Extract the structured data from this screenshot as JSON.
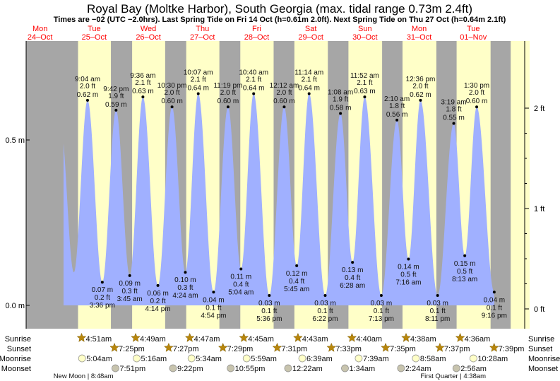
{
  "chart_data": {
    "type": "area",
    "title": "Royal Bay (Moltke Harbor), South Georgia (max. tidal range 0.73m 2.4ft)",
    "subtitle": "Times are −02 (UTC −2.0hrs). Last Spring Tide on Fri 14 Oct (h=0.61m 2.0ft). Next Spring Tide on Thu 27 Oct (h=0.64m 2.1ft)",
    "days": [
      {
        "dow": "Mon",
        "date": "24–Oct"
      },
      {
        "dow": "Tue",
        "date": "25–Oct"
      },
      {
        "dow": "Wed",
        "date": "26–Oct"
      },
      {
        "dow": "Thu",
        "date": "27–Oct"
      },
      {
        "dow": "Fri",
        "date": "28–Oct"
      },
      {
        "dow": "Sat",
        "date": "29–Oct"
      },
      {
        "dow": "Sun",
        "date": "30–Oct"
      },
      {
        "dow": "Mon",
        "date": "31–Oct"
      },
      {
        "dow": "Tue",
        "date": "01–Nov"
      }
    ],
    "y_left_ticks": [
      {
        "value": 0.0,
        "label": "0.0 m"
      },
      {
        "value": 0.5,
        "label": "0.5 m"
      }
    ],
    "y_right_ticks": [
      {
        "value": 0,
        "label": "0 ft"
      },
      {
        "value": 1,
        "label": "1 ft"
      },
      {
        "value": 2,
        "label": "2 ft"
      }
    ],
    "ylim_m": [
      0.0,
      0.7
    ],
    "tides": [
      {
        "day": 1,
        "time": "9:04 am",
        "m": 0.62,
        "ft": "2.0 ft",
        "type": "high"
      },
      {
        "day": 1,
        "time": "3:36 pm",
        "m": 0.07,
        "ft": "0.2 ft",
        "type": "low"
      },
      {
        "day": 1,
        "time": "9:42 pm",
        "m": 0.59,
        "ft": "1.9 ft",
        "type": "high"
      },
      {
        "day": 2,
        "time": "3:45 am",
        "m": 0.09,
        "ft": "0.3 ft",
        "type": "low"
      },
      {
        "day": 2,
        "time": "9:36 am",
        "m": 0.63,
        "ft": "2.1 ft",
        "type": "high"
      },
      {
        "day": 2,
        "time": "4:14 pm",
        "m": 0.06,
        "ft": "0.2 ft",
        "type": "low"
      },
      {
        "day": 2,
        "time": "10:30 pm",
        "m": 0.6,
        "ft": "2.0 ft",
        "type": "high"
      },
      {
        "day": 3,
        "time": "4:24 am",
        "m": 0.1,
        "ft": "0.3 ft",
        "type": "low"
      },
      {
        "day": 3,
        "time": "10:07 am",
        "m": 0.64,
        "ft": "2.1 ft",
        "type": "high"
      },
      {
        "day": 3,
        "time": "4:54 pm",
        "m": 0.04,
        "ft": "0.1 ft",
        "type": "low"
      },
      {
        "day": 3,
        "time": "11:19 pm",
        "m": 0.6,
        "ft": "2.0 ft",
        "type": "high"
      },
      {
        "day": 4,
        "time": "5:04 am",
        "m": 0.11,
        "ft": "0.4 ft",
        "type": "low"
      },
      {
        "day": 4,
        "time": "10:40 am",
        "m": 0.64,
        "ft": "2.1 ft",
        "type": "high"
      },
      {
        "day": 4,
        "time": "5:36 pm",
        "m": 0.03,
        "ft": "0.1 ft",
        "type": "low"
      },
      {
        "day": 5,
        "time": "12:12 am",
        "m": 0.6,
        "ft": "2.0 ft",
        "type": "high"
      },
      {
        "day": 5,
        "time": "5:45 am",
        "m": 0.12,
        "ft": "0.4 ft",
        "type": "low"
      },
      {
        "day": 5,
        "time": "11:14 am",
        "m": 0.64,
        "ft": "2.1 ft",
        "type": "high"
      },
      {
        "day": 5,
        "time": "6:22 pm",
        "m": 0.03,
        "ft": "0.1 ft",
        "type": "low"
      },
      {
        "day": 6,
        "time": "1:08 am",
        "m": 0.58,
        "ft": "1.9 ft",
        "type": "high"
      },
      {
        "day": 6,
        "time": "6:28 am",
        "m": 0.13,
        "ft": "0.4 ft",
        "type": "low"
      },
      {
        "day": 6,
        "time": "11:52 am",
        "m": 0.63,
        "ft": "2.1 ft",
        "type": "high"
      },
      {
        "day": 6,
        "time": "7:13 pm",
        "m": 0.03,
        "ft": "0.1 ft",
        "type": "low"
      },
      {
        "day": 7,
        "time": "2:10 am",
        "m": 0.56,
        "ft": "1.8 ft",
        "type": "high"
      },
      {
        "day": 7,
        "time": "7:16 am",
        "m": 0.14,
        "ft": "0.5 ft",
        "type": "low"
      },
      {
        "day": 7,
        "time": "12:36 pm",
        "m": 0.62,
        "ft": "2.0 ft",
        "type": "high"
      },
      {
        "day": 7,
        "time": "8:11 pm",
        "m": 0.03,
        "ft": "0.1 ft",
        "type": "low"
      },
      {
        "day": 8,
        "time": "3:19 am",
        "m": 0.55,
        "ft": "1.8 ft",
        "type": "high"
      },
      {
        "day": 8,
        "time": "8:13 am",
        "m": 0.15,
        "ft": "0.5 ft",
        "type": "low"
      },
      {
        "day": 8,
        "time": "1:30 pm",
        "m": 0.6,
        "ft": "2.0 ft",
        "type": "high"
      },
      {
        "day": 8,
        "time": "9:16 pm",
        "m": 0.04,
        "ft": "0.1 ft",
        "type": "low"
      }
    ],
    "rows": {
      "sunrise_label": "Sunrise",
      "sunset_label": "Sunset",
      "moonrise_label": "Moonrise",
      "moonset_label": "Moonset"
    },
    "sunrise": [
      {
        "day": 1,
        "time": "4:51am"
      },
      {
        "day": 2,
        "time": "4:49am"
      },
      {
        "day": 3,
        "time": "4:47am"
      },
      {
        "day": 4,
        "time": "4:45am"
      },
      {
        "day": 5,
        "time": "4:43am"
      },
      {
        "day": 6,
        "time": "4:40am"
      },
      {
        "day": 7,
        "time": "4:38am"
      },
      {
        "day": 8,
        "time": "4:36am"
      }
    ],
    "sunset": [
      {
        "day": 1,
        "time": "7:25pm"
      },
      {
        "day": 2,
        "time": "7:27pm"
      },
      {
        "day": 3,
        "time": "7:29pm"
      },
      {
        "day": 4,
        "time": "7:31pm"
      },
      {
        "day": 5,
        "time": "7:33pm"
      },
      {
        "day": 6,
        "time": "7:35pm"
      },
      {
        "day": 7,
        "time": "7:37pm"
      },
      {
        "day": 8,
        "time": "7:39pm"
      }
    ],
    "moonrise": [
      {
        "day": 1,
        "time": "5:04am"
      },
      {
        "day": 2,
        "time": "5:16am"
      },
      {
        "day": 3,
        "time": "5:34am"
      },
      {
        "day": 4,
        "time": "5:59am"
      },
      {
        "day": 5,
        "time": "6:39am"
      },
      {
        "day": 6,
        "time": "7:39am"
      },
      {
        "day": 7,
        "time": "8:58am"
      },
      {
        "day": 8,
        "time": "10:28am"
      }
    ],
    "moonset": [
      {
        "day": 1,
        "time": "7:51pm"
      },
      {
        "day": 2,
        "time": "9:22pm"
      },
      {
        "day": 3,
        "time": "10:55pm"
      },
      {
        "day": 5,
        "time": "12:22am"
      },
      {
        "day": 6,
        "time": "1:34am"
      },
      {
        "day": 7,
        "time": "2:24am"
      },
      {
        "day": 8,
        "time": "2:56am"
      }
    ],
    "moon_phases": [
      {
        "day": 1,
        "time": "8:48am",
        "label": "New Moon | 8:48am"
      },
      {
        "day": 8,
        "time": "4:38am",
        "label": "First Quarter | 4:38am"
      }
    ],
    "colors": {
      "water": "#a0b0ff",
      "day": "#ffffc8",
      "night": "#a6a6a6",
      "dates": "#ff0000",
      "sun": "#b8860b",
      "moonrise": "#ffffc8",
      "moonset": "#c8c4ae"
    }
  }
}
